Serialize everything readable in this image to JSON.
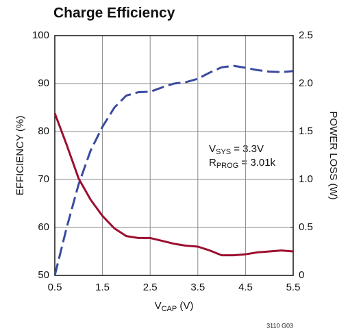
{
  "chart_data": {
    "type": "line",
    "title": "Charge Efficiency",
    "xlabel": [
      "V",
      "CAP",
      " (V)"
    ],
    "ylabel": "EFFICIENCY (%)",
    "y2label": "POWER LOSS (W)",
    "annotations": [
      [
        "V",
        "SYS",
        " = 3.3V"
      ],
      [
        "R",
        "PROG",
        " = 3.01k"
      ]
    ],
    "note": "3110 G03",
    "x": [
      0.5,
      0.75,
      1.0,
      1.25,
      1.5,
      1.75,
      2.0,
      2.25,
      2.5,
      2.75,
      3.0,
      3.25,
      3.5,
      3.75,
      4.0,
      4.25,
      4.5,
      4.75,
      5.0,
      5.25,
      5.5
    ],
    "series": [
      {
        "color": "#3a4a9e",
        "dashed": true,
        "values": [
          50,
          60,
          69,
          76,
          81,
          85,
          87.5,
          88.2,
          88.3,
          89.2,
          90,
          90.3,
          91,
          92.3,
          93.4,
          93.7,
          93.3,
          92.8,
          92.5,
          92.4,
          92.6
        ]
      },
      {
        "color": "#9c0f30",
        "axis": "y2",
        "values": [
          1.69,
          1.36,
          1.01,
          0.79,
          0.62,
          0.49,
          0.41,
          0.39,
          0.39,
          0.36,
          0.33,
          0.31,
          0.3,
          0.26,
          0.21,
          0.21,
          0.22,
          0.24,
          0.25,
          0.26,
          0.25
        ]
      }
    ],
    "xlim": [
      0.5,
      5.5
    ],
    "xticks": [
      0.5,
      1.5,
      2.5,
      3.5,
      4.5,
      5.5
    ],
    "ylim": [
      50,
      100
    ],
    "yticks": [
      50,
      60,
      70,
      80,
      90,
      100
    ],
    "y2lim": [
      0,
      2.5
    ],
    "y2ticks": [
      0,
      0.5,
      {
        "value": 1,
        "label": "1.0"
      },
      1.5,
      {
        "value": 2,
        "label": "2.0"
      },
      2.5
    ],
    "grid": true
  }
}
